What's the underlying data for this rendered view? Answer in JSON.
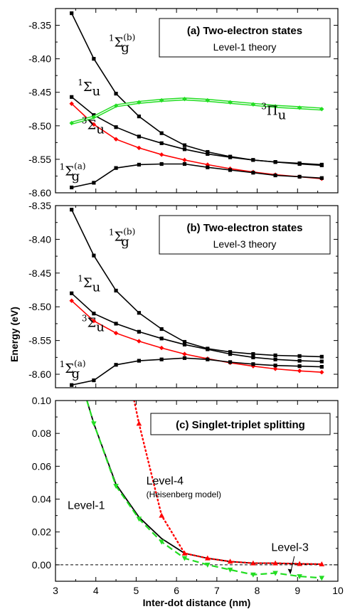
{
  "ylabel_shared": "Energy (eV)",
  "colors": {
    "black": "#000000",
    "red": "#ff0000",
    "green": "#22dd22"
  },
  "chart_data": [
    {
      "type": "line",
      "title": "(a) Two-electron states",
      "subtitle": "Level-1 theory",
      "xlim": [
        3,
        10
      ],
      "ylim": [
        -8.6,
        -8.325
      ],
      "yticks": [
        -8.35,
        -8.4,
        -8.45,
        -8.5,
        -8.55,
        -8.6
      ],
      "ytick_labels": [
        "-8.35",
        "-8.40",
        "-8.45",
        "-8.50",
        "-8.55",
        "-8.60"
      ],
      "series": [
        {
          "name": "1Σg(b)",
          "color": "#000000",
          "marker": "square",
          "x": [
            3.4,
            3.95,
            4.5,
            5.07,
            5.63,
            6.2,
            6.77,
            7.33,
            7.9,
            8.45,
            9.05,
            9.6
          ],
          "y": [
            -8.332,
            -8.4,
            -8.452,
            -8.486,
            -8.511,
            -8.529,
            -8.539,
            -8.546,
            -8.551,
            -8.554,
            -8.557,
            -8.559
          ]
        },
        {
          "name": "1Σu",
          "color": "#000000",
          "marker": "square",
          "x": [
            3.4,
            3.95,
            4.5,
            5.07,
            5.63,
            6.2,
            6.77,
            7.33,
            7.9,
            8.45,
            9.05,
            9.6
          ],
          "y": [
            -8.457,
            -8.484,
            -8.502,
            -8.516,
            -8.526,
            -8.535,
            -8.542,
            -8.547,
            -8.551,
            -8.554,
            -8.556,
            -8.558
          ]
        },
        {
          "name": "3Σu",
          "color": "#ff0000",
          "marker": "diamond",
          "x": [
            3.4,
            3.95,
            4.5,
            5.07,
            5.63,
            6.2,
            6.77,
            7.33,
            7.9,
            8.45,
            9.05,
            9.6
          ],
          "y": [
            -8.467,
            -8.498,
            -8.52,
            -8.533,
            -8.543,
            -8.551,
            -8.558,
            -8.564,
            -8.569,
            -8.573,
            -8.576,
            -8.579
          ]
        },
        {
          "name": "1Σg(a)",
          "color": "#000000",
          "marker": "square",
          "x": [
            3.4,
            3.95,
            4.5,
            5.07,
            5.63,
            6.2,
            6.77,
            7.33,
            7.9,
            8.45,
            9.05,
            9.6
          ],
          "y": [
            -8.592,
            -8.585,
            -8.563,
            -8.558,
            -8.557,
            -8.557,
            -8.562,
            -8.566,
            -8.57,
            -8.574,
            -8.576,
            -8.578
          ]
        },
        {
          "name": "3Πu",
          "color": "#22dd22",
          "marker": "diamond",
          "double": true,
          "x": [
            3.4,
            3.95,
            4.5,
            5.07,
            5.63,
            6.2,
            6.77,
            7.33,
            7.9,
            8.45,
            9.05,
            9.6
          ],
          "y": [
            -8.496,
            -8.487,
            -8.47,
            -8.465,
            -8.462,
            -8.46,
            -8.462,
            -8.465,
            -8.468,
            -8.471,
            -8.473,
            -8.475
          ]
        }
      ],
      "labels": [
        {
          "base": "Σ",
          "pre": "1",
          "sub": "g",
          "sup2": "(b)",
          "x": 4.32,
          "y": -8.382
        },
        {
          "base": "Σ",
          "pre": "1",
          "sub": "u",
          "x": 3.55,
          "y": -8.448
        },
        {
          "base": "Σ",
          "pre": "3",
          "sub": "u",
          "x": 3.65,
          "y": -8.505
        },
        {
          "base": "Σ",
          "pre": "1",
          "sub": "g",
          "sup2": "(a)",
          "x": 3.1,
          "y": -8.574
        },
        {
          "base": "Π",
          "pre": "3",
          "sub": "u",
          "x": 8.1,
          "y": -8.484
        }
      ]
    },
    {
      "type": "line",
      "title": "(b) Two-electron states",
      "subtitle": "Level-3 theory",
      "xlim": [
        3,
        10
      ],
      "ylim": [
        -8.62,
        -8.35
      ],
      "yticks": [
        -8.35,
        -8.4,
        -8.45,
        -8.5,
        -8.55,
        -8.6
      ],
      "ytick_labels": [
        "-8.35",
        "-8.40",
        "-8.45",
        "-8.50",
        "-8.55",
        "-8.60"
      ],
      "series": [
        {
          "name": "1Σg(b)",
          "color": "#000000",
          "marker": "square",
          "x": [
            3.4,
            3.95,
            4.5,
            5.07,
            5.63,
            6.2,
            6.77,
            7.33,
            7.9,
            8.45,
            9.05,
            9.6
          ],
          "y": [
            -8.356,
            -8.424,
            -8.476,
            -8.509,
            -8.533,
            -8.552,
            -8.562,
            -8.567,
            -8.57,
            -8.572,
            -8.573,
            -8.574
          ]
        },
        {
          "name": "1Σu",
          "color": "#000000",
          "marker": "square",
          "x": [
            3.4,
            3.95,
            4.5,
            5.07,
            5.63,
            6.2,
            6.77,
            7.33,
            7.9,
            8.45,
            9.05,
            9.6
          ],
          "y": [
            -8.48,
            -8.51,
            -8.525,
            -8.537,
            -8.547,
            -8.556,
            -8.563,
            -8.57,
            -8.575,
            -8.578,
            -8.58,
            -8.581
          ]
        },
        {
          "name": "3Σu",
          "color": "#ff0000",
          "marker": "diamond",
          "x": [
            3.4,
            3.95,
            4.5,
            5.07,
            5.63,
            6.2,
            6.77,
            7.33,
            7.9,
            8.45,
            9.05,
            9.6
          ],
          "y": [
            -8.491,
            -8.521,
            -8.539,
            -8.551,
            -8.561,
            -8.57,
            -8.577,
            -8.583,
            -8.588,
            -8.592,
            -8.595,
            -8.597
          ]
        },
        {
          "name": "1Σg(a)",
          "color": "#000000",
          "marker": "square",
          "x": [
            3.4,
            3.95,
            4.5,
            5.07,
            5.63,
            6.2,
            6.77,
            7.33,
            7.9,
            8.45,
            9.05,
            9.6
          ],
          "y": [
            -8.616,
            -8.609,
            -8.586,
            -8.58,
            -8.578,
            -8.576,
            -8.578,
            -8.582,
            -8.585,
            -8.587,
            -8.588,
            -8.589
          ]
        }
      ],
      "labels": [
        {
          "base": "Σ",
          "pre": "1",
          "sub": "g",
          "sup2": "(b)",
          "x": 4.32,
          "y": -8.402
        },
        {
          "base": "Σ",
          "pre": "1",
          "sub": "u",
          "x": 3.55,
          "y": -8.471
        },
        {
          "base": "Σ",
          "pre": "3",
          "sub": "u",
          "x": 3.65,
          "y": -8.53
        },
        {
          "base": "Σ",
          "pre": "1",
          "sub": "g",
          "sup2": "(a)",
          "x": 3.1,
          "y": -8.598
        }
      ]
    },
    {
      "type": "line",
      "title": "(c) Singlet-triplet splitting",
      "xlabel": "Inter-dot distance (nm)",
      "xlim": [
        3,
        10
      ],
      "ylim": [
        -0.01,
        0.1
      ],
      "xticks": [
        3,
        4,
        5,
        6,
        7,
        8,
        9,
        10
      ],
      "xtick_labels": [
        "3",
        "4",
        "5",
        "6",
        "7",
        "8",
        "9",
        "10"
      ],
      "yticks": [
        0.0,
        0.02,
        0.04,
        0.06,
        0.08,
        0.1
      ],
      "ytick_labels": [
        "0.00",
        "0.02",
        "0.04",
        "0.06",
        "0.08",
        "0.10"
      ],
      "zero_line": true,
      "series": [
        {
          "name": "Level-1",
          "color": "#000000",
          "style": "solid",
          "marker": "none",
          "x": [
            3.78,
            3.95,
            4.5,
            5.07,
            5.63,
            6.2,
            6.77,
            7.33,
            7.9,
            8.45,
            9.05,
            9.6
          ],
          "y": [
            0.1,
            0.086,
            0.049,
            0.029,
            0.016,
            0.007,
            0.004,
            0.002,
            0.001,
            0.001,
            0.0006,
            0.0004
          ]
        },
        {
          "name": "Level-4",
          "color": "#ff0000",
          "style": "dotted",
          "marker": "triangle-up",
          "x": [
            4.95,
            5.07,
            5.63,
            6.2,
            6.77,
            7.33,
            7.9,
            8.45,
            9.05,
            9.6
          ],
          "y": [
            0.1,
            0.086,
            0.03,
            0.007,
            0.004,
            0.002,
            0.001,
            0.001,
            0.0006,
            0.0004
          ]
        },
        {
          "name": "Level-3",
          "color": "#22dd22",
          "style": "dashed",
          "marker": "triangle-down",
          "x": [
            3.78,
            3.95,
            4.5,
            5.07,
            5.63,
            6.2,
            6.77,
            7.33,
            7.9,
            8.45,
            9.05,
            9.6
          ],
          "y": [
            0.1,
            0.086,
            0.048,
            0.028,
            0.014,
            0.004,
            0.0,
            -0.003,
            -0.006,
            -0.005,
            -0.007,
            -0.008
          ]
        }
      ],
      "annotations": [
        {
          "text": "Level-1",
          "x": 3.3,
          "y": 0.034,
          "size": "large"
        },
        {
          "text": "Level-4",
          "x": 5.25,
          "y": 0.049,
          "size": "large"
        },
        {
          "text": "(Heisenberg model)",
          "x": 5.25,
          "y": 0.041,
          "size": "small"
        },
        {
          "text": "Level-3",
          "x": 8.35,
          "y": 0.0085,
          "size": "large"
        }
      ]
    }
  ]
}
